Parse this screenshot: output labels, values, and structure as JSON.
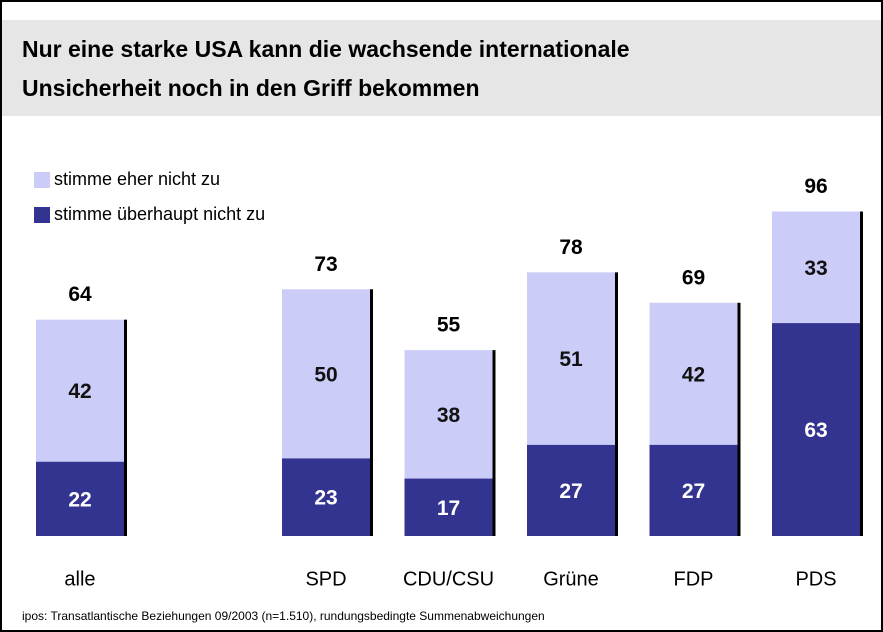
{
  "chart_data": {
    "type": "stacked_bar",
    "title": [
      "Nur eine starke USA kann die wachsende internationale",
      "Unsicherheit noch in den Griff bekommen"
    ],
    "categories": [
      "alle",
      "SPD",
      "CDU/CSU",
      "Grüne",
      "FDP",
      "PDS"
    ],
    "series": [
      {
        "name": "stimme überhaupt nicht zu",
        "color": "#333390",
        "values": [
          22,
          23,
          17,
          27,
          27,
          63
        ]
      },
      {
        "name": "stimme eher nicht zu",
        "color": "#ccccf8",
        "values": [
          42,
          50,
          38,
          51,
          42,
          33
        ]
      }
    ],
    "totals": [
      64,
      73,
      55,
      78,
      69,
      96
    ],
    "ylim": [
      0,
      100
    ],
    "footnote": "ipos: Transatlantische Beziehungen 09/2003  (n=1.510), rundungsbedingte Summenabweichungen"
  }
}
